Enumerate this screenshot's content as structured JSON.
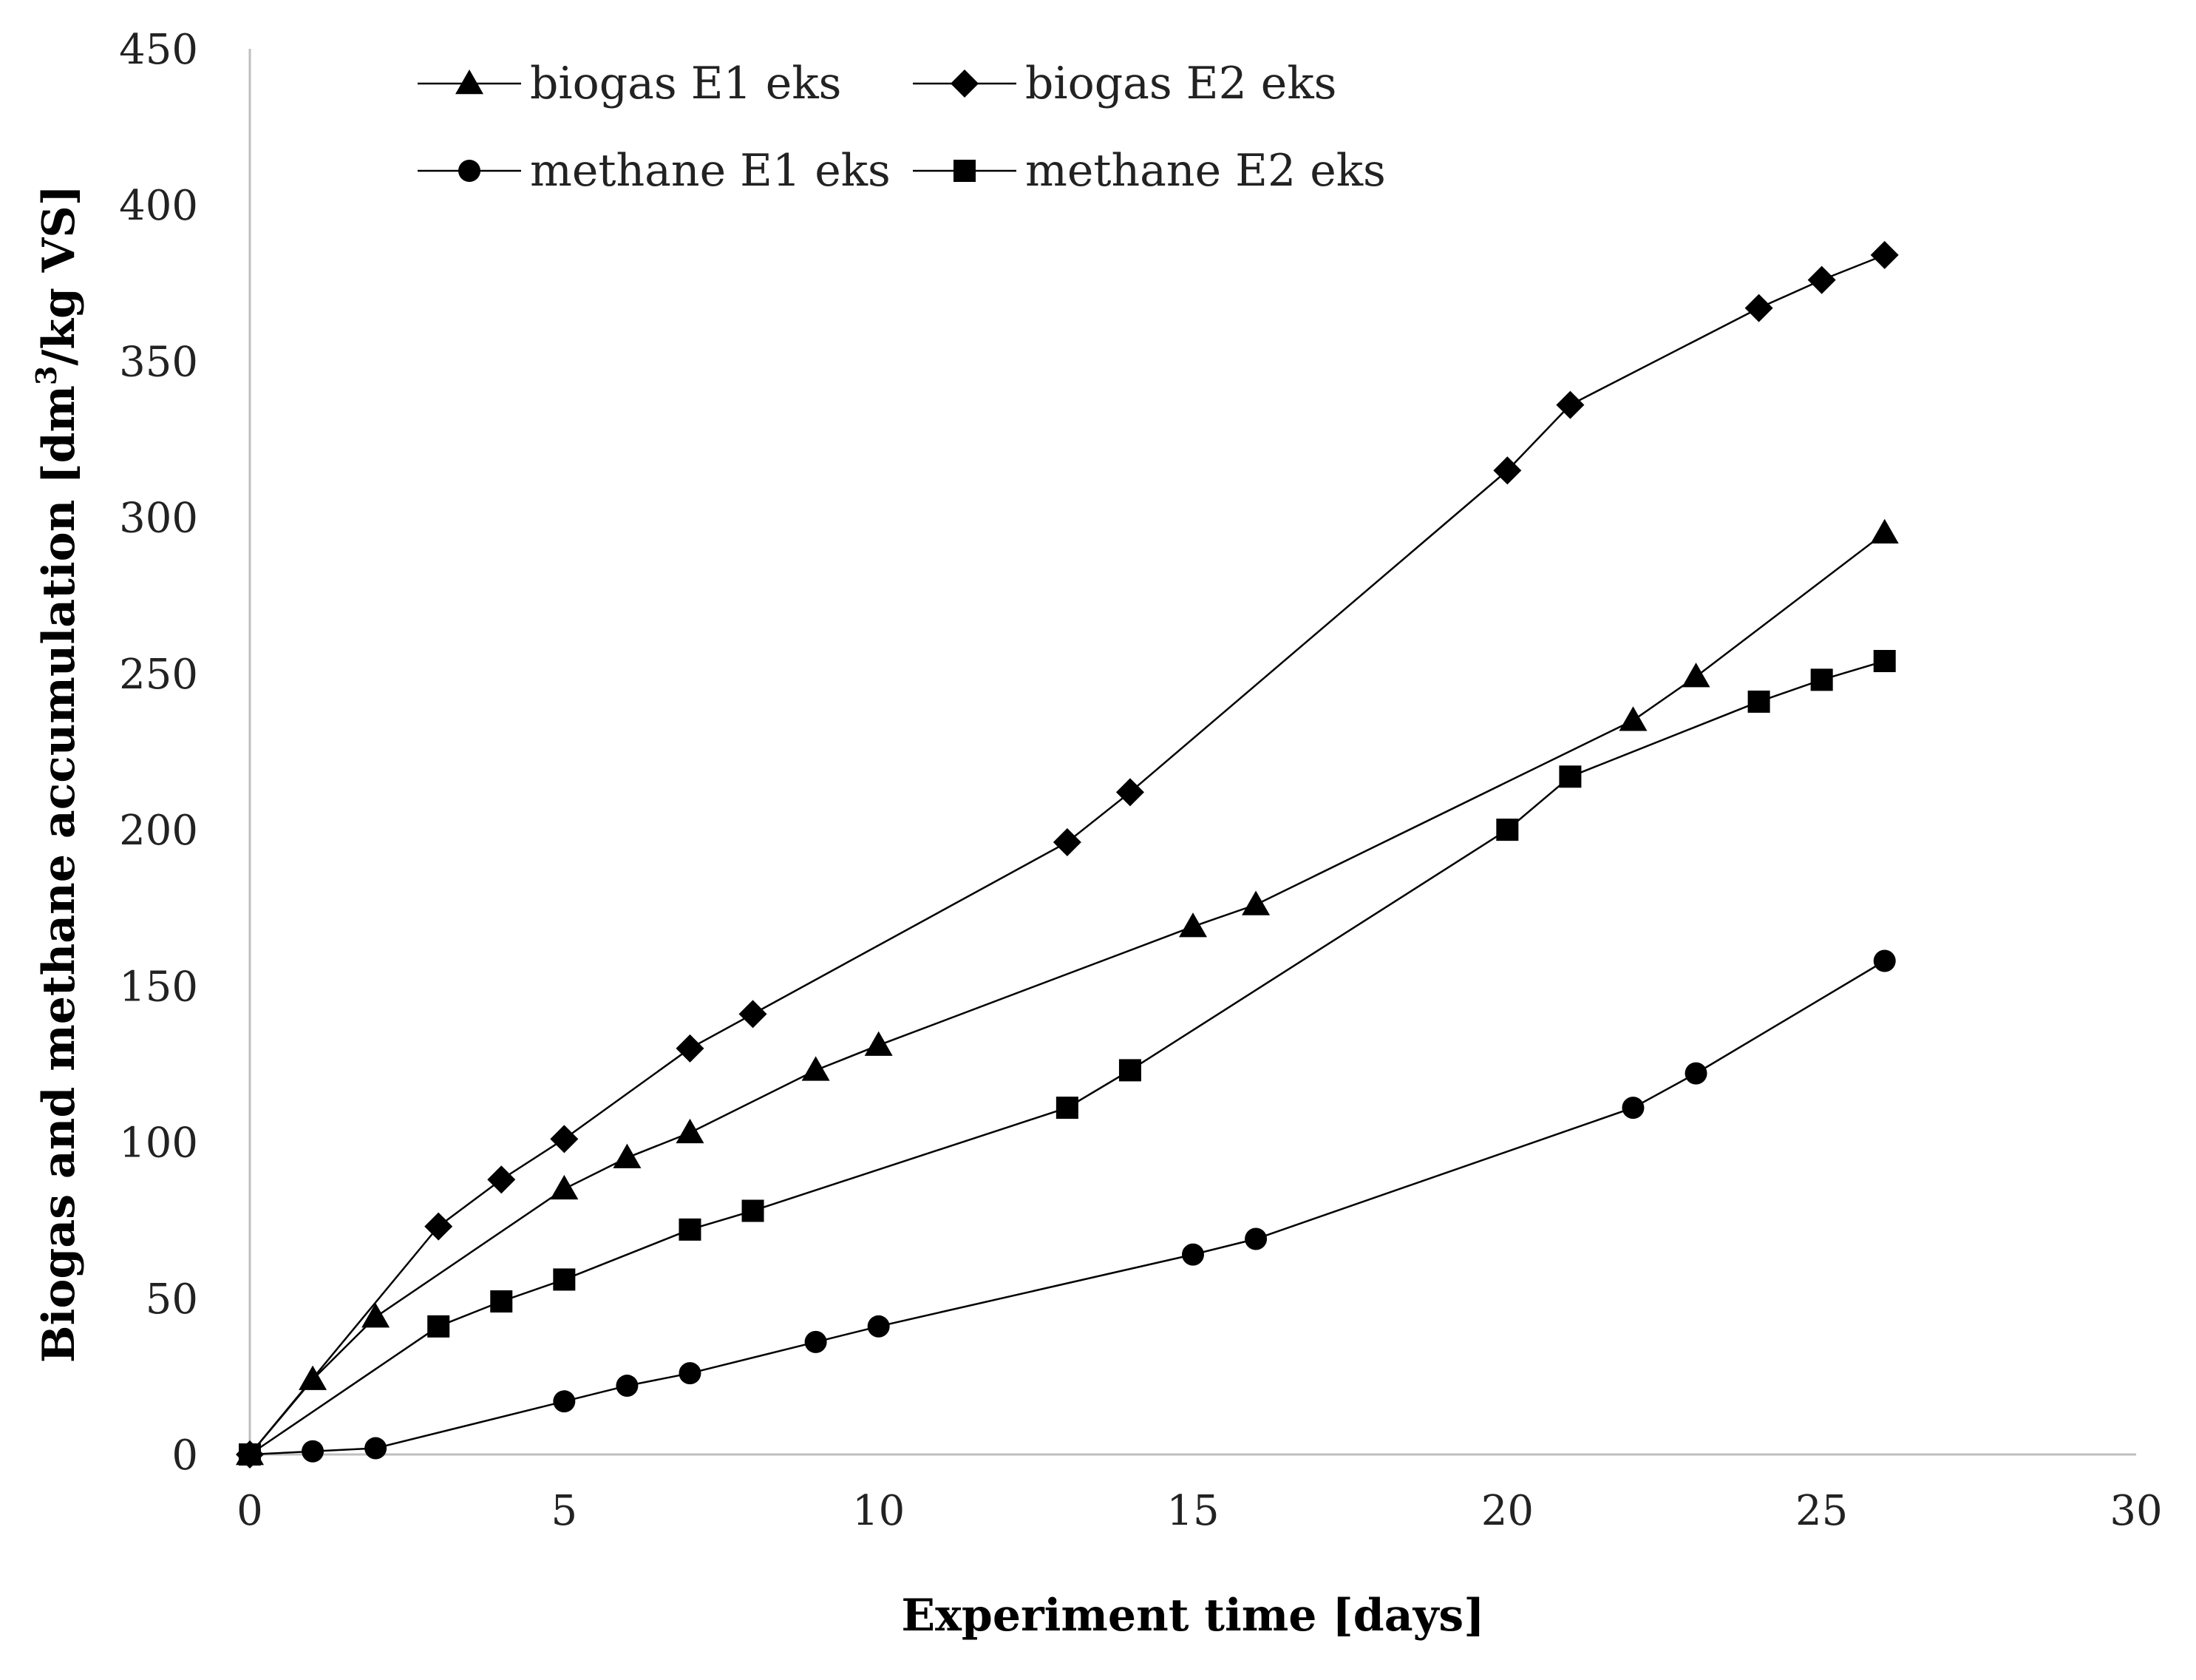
{
  "chart_data": {
    "type": "line",
    "xlabel": "Experiment time [days]",
    "ylabel_parts": [
      "Biogas and methane accumulation [dm",
      "3",
      "/kg VS]"
    ],
    "xlim": [
      0,
      30
    ],
    "ylim": [
      0,
      450
    ],
    "x_ticks": [
      0,
      5,
      10,
      15,
      20,
      25,
      30
    ],
    "y_ticks": [
      0,
      50,
      100,
      150,
      200,
      250,
      300,
      350,
      400,
      450
    ],
    "grid": false,
    "legend_position": "top-left",
    "line_color": "#000000",
    "series": [
      {
        "name": "biogas E1 eks",
        "marker": "triangle",
        "x": [
          0,
          1,
          2,
          5,
          6,
          7,
          9,
          10,
          15,
          16,
          22,
          23,
          26
        ],
        "y": [
          0,
          24,
          44,
          85,
          95,
          103,
          123,
          131,
          169,
          176,
          235,
          249,
          295
        ]
      },
      {
        "name": "biogas E2 eks",
        "marker": "diamond",
        "x": [
          0,
          3,
          4,
          5,
          7,
          8,
          13,
          14,
          20,
          21,
          24,
          25,
          26
        ],
        "y": [
          0,
          73,
          88,
          101,
          130,
          141,
          196,
          212,
          315,
          336,
          367,
          376,
          384
        ]
      },
      {
        "name": "methane E1 eks",
        "marker": "circle",
        "x": [
          0,
          1,
          2,
          5,
          6,
          7,
          9,
          10,
          15,
          16,
          22,
          23,
          26
        ],
        "y": [
          0,
          1,
          2,
          17,
          22,
          26,
          36,
          41,
          64,
          69,
          111,
          122,
          158
        ]
      },
      {
        "name": "methane E2 eks",
        "marker": "square",
        "x": [
          0,
          3,
          4,
          5,
          7,
          8,
          13,
          14,
          20,
          21,
          24,
          25,
          26
        ],
        "y": [
          0,
          41,
          49,
          56,
          72,
          78,
          111,
          123,
          200,
          217,
          241,
          248,
          254
        ]
      }
    ]
  }
}
